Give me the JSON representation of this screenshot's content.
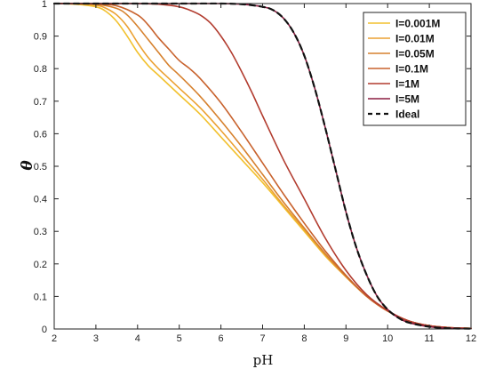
{
  "chart_data": {
    "type": "line",
    "xlabel": "pH",
    "ylabel": "θ",
    "xlim": [
      2,
      12
    ],
    "ylim": [
      0,
      1
    ],
    "x_ticks": [
      "2",
      "3",
      "4",
      "5",
      "6",
      "7",
      "8",
      "9",
      "10",
      "11",
      "12"
    ],
    "y_ticks": [
      "0",
      "0.1",
      "0.2",
      "0.3",
      "0.4",
      "0.5",
      "0.6",
      "0.7",
      "0.8",
      "0.9",
      "1"
    ],
    "grid": false,
    "legend_position": "top-right",
    "series": [
      {
        "name": "I=0.001M",
        "color": "#f2c12e",
        "style": "solid",
        "x": [
          2,
          2.5,
          3,
          3.25,
          3.5,
          3.75,
          4,
          4.25,
          4.5,
          4.75,
          5,
          5.5,
          6,
          6.5,
          7,
          7.5,
          8,
          8.5,
          9,
          9.5,
          10,
          10.5,
          11,
          11.5,
          12
        ],
        "y": [
          1.0,
          0.998,
          0.99,
          0.975,
          0.945,
          0.9,
          0.85,
          0.81,
          0.78,
          0.75,
          0.72,
          0.66,
          0.59,
          0.52,
          0.45,
          0.375,
          0.3,
          0.225,
          0.16,
          0.1,
          0.055,
          0.025,
          0.01,
          0.004,
          0.002
        ]
      },
      {
        "name": "I=0.01M",
        "color": "#eba132",
        "style": "solid",
        "x": [
          2,
          2.5,
          3,
          3.25,
          3.5,
          3.75,
          4,
          4.25,
          4.5,
          4.75,
          5,
          5.5,
          6,
          6.5,
          7,
          7.5,
          8,
          8.5,
          9,
          9.5,
          10,
          10.5,
          11,
          11.5,
          12
        ],
        "y": [
          1.0,
          0.999,
          0.995,
          0.985,
          0.965,
          0.93,
          0.88,
          0.835,
          0.8,
          0.77,
          0.74,
          0.68,
          0.61,
          0.535,
          0.46,
          0.38,
          0.305,
          0.228,
          0.16,
          0.1,
          0.055,
          0.025,
          0.01,
          0.004,
          0.002
        ]
      },
      {
        "name": "I=0.05M",
        "color": "#d6812e",
        "style": "solid",
        "x": [
          2,
          2.5,
          3,
          3.5,
          3.75,
          4,
          4.25,
          4.5,
          4.75,
          5,
          5.5,
          6,
          6.5,
          7,
          7.5,
          8,
          8.5,
          9,
          9.5,
          10,
          10.5,
          11,
          11.5,
          12
        ],
        "y": [
          1.0,
          1.0,
          0.998,
          0.985,
          0.965,
          0.93,
          0.89,
          0.85,
          0.81,
          0.78,
          0.715,
          0.64,
          0.56,
          0.475,
          0.39,
          0.31,
          0.232,
          0.162,
          0.1,
          0.055,
          0.025,
          0.01,
          0.004,
          0.002
        ]
      },
      {
        "name": "I=0.1M",
        "color": "#c8622d",
        "style": "solid",
        "x": [
          2,
          2.5,
          3,
          3.5,
          4,
          4.25,
          4.5,
          4.75,
          5,
          5.25,
          5.5,
          6,
          6.5,
          7,
          7.5,
          8,
          8.5,
          9,
          9.5,
          10,
          10.5,
          11,
          11.5,
          12
        ],
        "y": [
          1.0,
          1.0,
          0.999,
          0.993,
          0.965,
          0.935,
          0.895,
          0.86,
          0.825,
          0.8,
          0.77,
          0.695,
          0.605,
          0.51,
          0.415,
          0.325,
          0.24,
          0.165,
          0.1,
          0.055,
          0.025,
          0.01,
          0.004,
          0.002
        ]
      },
      {
        "name": "I=1M",
        "color": "#b23c2f",
        "style": "solid",
        "x": [
          2,
          3,
          4,
          4.5,
          5,
          5.25,
          5.5,
          5.75,
          6,
          6.25,
          6.5,
          6.75,
          7,
          7.5,
          8,
          8.5,
          9,
          9.5,
          10,
          10.5,
          11,
          11.5,
          12
        ],
        "y": [
          1.0,
          1.0,
          1.0,
          0.998,
          0.99,
          0.98,
          0.965,
          0.94,
          0.9,
          0.85,
          0.79,
          0.725,
          0.655,
          0.52,
          0.4,
          0.28,
          0.18,
          0.105,
          0.057,
          0.025,
          0.01,
          0.004,
          0.002
        ]
      },
      {
        "name": "I=5M",
        "color": "#8c1d40",
        "style": "solid",
        "x": [
          2,
          3,
          4,
          5,
          6,
          6.5,
          7,
          7.25,
          7.5,
          7.75,
          8,
          8.25,
          8.5,
          8.75,
          9,
          9.25,
          9.5,
          9.75,
          10,
          10.25,
          10.5,
          11,
          11.5,
          12
        ],
        "y": [
          1.0,
          1.0,
          1.0,
          1.0,
          1.0,
          0.998,
          0.99,
          0.98,
          0.955,
          0.91,
          0.84,
          0.74,
          0.62,
          0.49,
          0.36,
          0.25,
          0.165,
          0.1,
          0.06,
          0.035,
          0.02,
          0.007,
          0.002,
          0.001
        ]
      },
      {
        "name": "Ideal",
        "color": "#111111",
        "style": "dashed",
        "x": [
          2,
          3,
          4,
          5,
          6,
          6.5,
          7,
          7.25,
          7.5,
          7.75,
          8,
          8.25,
          8.5,
          8.75,
          9,
          9.25,
          9.5,
          9.75,
          10,
          10.25,
          10.5,
          11,
          11.5,
          12
        ],
        "y": [
          1.0,
          1.0,
          1.0,
          1.0,
          1.0,
          0.998,
          0.99,
          0.98,
          0.955,
          0.91,
          0.84,
          0.74,
          0.62,
          0.49,
          0.36,
          0.25,
          0.165,
          0.1,
          0.06,
          0.035,
          0.02,
          0.007,
          0.002,
          0.001
        ]
      }
    ]
  }
}
